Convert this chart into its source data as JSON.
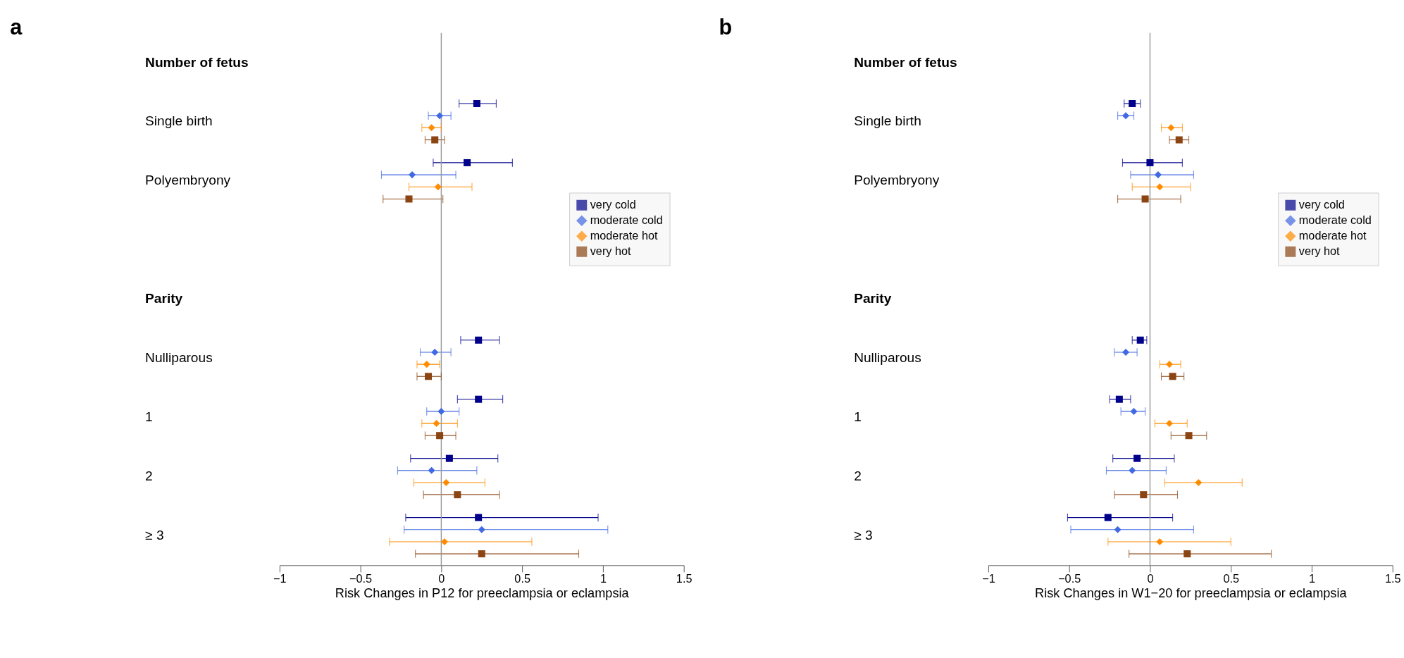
{
  "chart_data": [
    {
      "type": "scatter",
      "orientation": "horizontal",
      "title": "a",
      "xlabel": "Risk Changes in P12 for preeclampsia or eclampsia",
      "categories": [
        "Number of fetus",
        "Single birth",
        "Polyembryony",
        null,
        "Parity",
        "Nulliparous",
        "1",
        "2",
        "≥ 3"
      ],
      "xlim": [
        -1,
        1.5
      ],
      "xticks": [
        -1,
        -0.5,
        0,
        0.5,
        1,
        1.5
      ],
      "grid": false,
      "legend": "right",
      "ref_lines": [
        {
          "axis": "x",
          "value": 0,
          "color": "#999999"
        }
      ],
      "series": [
        {
          "name": "very cold",
          "color": "#00008b",
          "marker": "square",
          "values": [
            null,
            0.22,
            0.16,
            null,
            null,
            0.23,
            0.23,
            0.05,
            0.23
          ],
          "errors": [
            null,
            [
              0.11,
              0.34
            ],
            [
              -0.05,
              0.44
            ],
            null,
            null,
            [
              0.12,
              0.36
            ],
            [
              0.1,
              0.38
            ],
            [
              -0.19,
              0.35
            ],
            [
              -0.22,
              0.97
            ]
          ]
        },
        {
          "name": "moderate cold",
          "color": "#4169e1",
          "marker": "diamond",
          "values": [
            null,
            -0.01,
            -0.18,
            null,
            null,
            -0.04,
            0.0,
            -0.06,
            0.25
          ],
          "errors": [
            null,
            [
              -0.08,
              0.06
            ],
            [
              -0.37,
              0.09
            ],
            null,
            null,
            [
              -0.13,
              0.06
            ],
            [
              -0.09,
              0.11
            ],
            [
              -0.27,
              0.22
            ],
            [
              -0.23,
              1.03
            ]
          ]
        },
        {
          "name": "moderate hot",
          "color": "#ff8c00",
          "marker": "diamond",
          "values": [
            null,
            -0.06,
            -0.02,
            null,
            null,
            -0.09,
            -0.03,
            0.03,
            0.02
          ],
          "errors": [
            null,
            [
              -0.12,
              0.0
            ],
            [
              -0.2,
              0.19
            ],
            null,
            null,
            [
              -0.15,
              -0.01
            ],
            [
              -0.12,
              0.1
            ],
            [
              -0.17,
              0.27
            ],
            [
              -0.32,
              0.56
            ]
          ]
        },
        {
          "name": "very hot",
          "color": "#8b4513",
          "marker": "square",
          "values": [
            null,
            -0.04,
            -0.2,
            null,
            null,
            -0.08,
            -0.01,
            0.1,
            0.25
          ],
          "errors": [
            null,
            [
              -0.1,
              0.02
            ],
            [
              -0.36,
              0.01
            ],
            null,
            null,
            [
              -0.15,
              0.0
            ],
            [
              -0.1,
              0.09
            ],
            [
              -0.11,
              0.36
            ],
            [
              -0.16,
              0.85
            ]
          ]
        }
      ]
    },
    {
      "type": "scatter",
      "orientation": "horizontal",
      "title": "b",
      "xlabel": "Risk Changes in W1−20 for preeclampsia or eclampsia",
      "categories": [
        "Number of fetus",
        "Single birth",
        "Polyembryony",
        null,
        "Parity",
        "Nulliparous",
        "1",
        "2",
        "≥ 3"
      ],
      "xlim": [
        -1,
        1.5
      ],
      "xticks": [
        -1,
        -0.5,
        0,
        0.5,
        1,
        1.5
      ],
      "grid": false,
      "legend": "right",
      "ref_lines": [
        {
          "axis": "x",
          "value": 0,
          "color": "#999999"
        }
      ],
      "series": [
        {
          "name": "very cold",
          "color": "#00008b",
          "marker": "square",
          "values": [
            null,
            -0.11,
            0.0,
            null,
            null,
            -0.06,
            -0.19,
            -0.08,
            -0.26
          ],
          "errors": [
            null,
            [
              -0.16,
              -0.06
            ],
            [
              -0.17,
              0.2
            ],
            null,
            null,
            [
              -0.11,
              -0.02
            ],
            [
              -0.25,
              -0.12
            ],
            [
              -0.23,
              0.15
            ],
            [
              -0.51,
              0.14
            ]
          ]
        },
        {
          "name": "moderate cold",
          "color": "#4169e1",
          "marker": "diamond",
          "values": [
            null,
            -0.15,
            0.05,
            null,
            null,
            -0.15,
            -0.1,
            -0.11,
            -0.2
          ],
          "errors": [
            null,
            [
              -0.2,
              -0.1
            ],
            [
              -0.12,
              0.27
            ],
            null,
            null,
            [
              -0.22,
              -0.08
            ],
            [
              -0.18,
              -0.03
            ],
            [
              -0.27,
              0.1
            ],
            [
              -0.49,
              0.27
            ]
          ]
        },
        {
          "name": "moderate hot",
          "color": "#ff8c00",
          "marker": "diamond",
          "values": [
            null,
            0.13,
            0.06,
            null,
            null,
            0.12,
            0.12,
            0.3,
            0.06
          ],
          "errors": [
            null,
            [
              0.07,
              0.2
            ],
            [
              -0.11,
              0.25
            ],
            null,
            null,
            [
              0.06,
              0.19
            ],
            [
              0.03,
              0.23
            ],
            [
              0.09,
              0.57
            ],
            [
              -0.26,
              0.5
            ]
          ]
        },
        {
          "name": "very hot",
          "color": "#8b4513",
          "marker": "square",
          "values": [
            null,
            0.18,
            -0.03,
            null,
            null,
            0.14,
            0.24,
            -0.04,
            0.23
          ],
          "errors": [
            null,
            [
              0.12,
              0.24
            ],
            [
              -0.2,
              0.19
            ],
            null,
            null,
            [
              0.07,
              0.21
            ],
            [
              0.13,
              0.35
            ],
            [
              -0.22,
              0.17
            ],
            [
              -0.13,
              0.75
            ]
          ]
        }
      ]
    }
  ]
}
